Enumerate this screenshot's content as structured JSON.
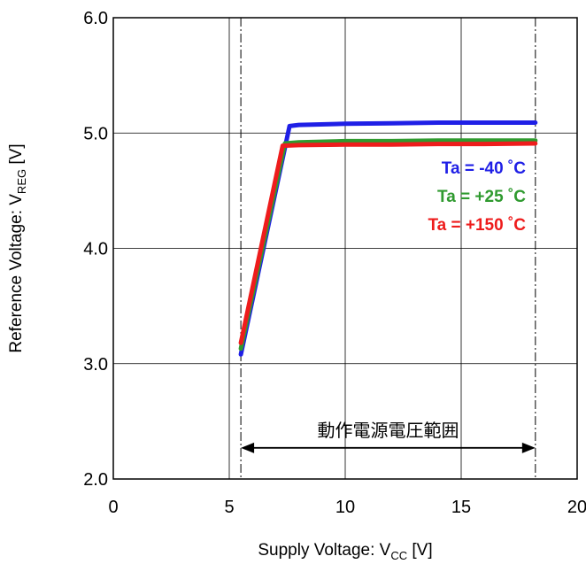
{
  "chart_data": {
    "type": "line",
    "xlabel": "Supply Voltage: V",
    "xlabel_sub": "CC",
    "xlabel_unit": " [V]",
    "ylabel": "Reference Voltage: V",
    "ylabel_sub": "REG",
    "ylabel_unit": " [V]",
    "xlim": [
      0,
      20
    ],
    "ylim": [
      2.0,
      6.0
    ],
    "x_ticks": [
      "0",
      "5",
      "10",
      "15",
      "20"
    ],
    "x_tick_values": [
      0,
      5,
      10,
      15,
      20
    ],
    "y_ticks": [
      "2.0",
      "3.0",
      "4.0",
      "5.0",
      "6.0"
    ],
    "y_tick_values": [
      2,
      3,
      4,
      5,
      6
    ],
    "grid": true,
    "legend_placement": "right, inside plot",
    "series": [
      {
        "name": "Ta = -40 ˚C",
        "color": "#1f1fe6",
        "x": [
          5.5,
          7.6,
          8.0,
          10,
          12,
          14,
          16,
          18.2
        ],
        "y": [
          3.08,
          5.06,
          5.07,
          5.08,
          5.085,
          5.09,
          5.09,
          5.09
        ]
      },
      {
        "name": "Ta = +25 ˚C",
        "color": "#2f9a2f",
        "x": [
          5.5,
          7.4,
          8.0,
          10,
          12,
          14,
          16,
          18.2
        ],
        "y": [
          3.13,
          4.91,
          4.92,
          4.93,
          4.93,
          4.935,
          4.935,
          4.935
        ]
      },
      {
        "name": "Ta = +150 ˚C",
        "color": "#ee1c1c",
        "x": [
          5.5,
          7.3,
          8.0,
          10,
          12,
          14,
          16,
          18.2
        ],
        "y": [
          3.18,
          4.89,
          4.895,
          4.9,
          4.9,
          4.905,
          4.905,
          4.91
        ]
      }
    ],
    "reference_lines_x": [
      5.5,
      18.2
    ],
    "annotation": {
      "text": "動作電源電圧範囲",
      "from_x": 5.5,
      "to_x": 18.2,
      "y": 2.27
    }
  }
}
